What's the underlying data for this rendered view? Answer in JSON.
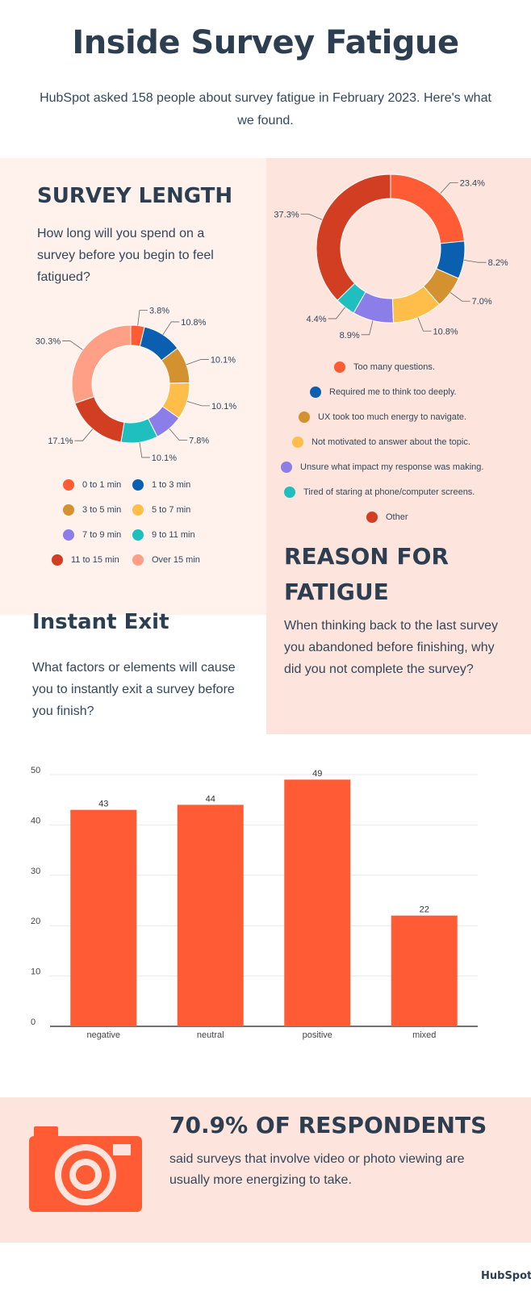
{
  "header": {
    "title": "Inside Survey Fatigue",
    "subtitle": "HubSpot asked 158 people about survey fatigue in February 2023. Here's what we found."
  },
  "survey_length": {
    "heading": "SURVEY LENGTH",
    "question": "How long will you spend on a survey before you begin to feel fatigued?",
    "legend": [
      {
        "label": "0 to 1 min",
        "color": "#ff5c35"
      },
      {
        "label": "1 to 3 min",
        "color": "#0b5fb0"
      },
      {
        "label": "3 to 5 min",
        "color": "#d4912f"
      },
      {
        "label": "5 to 7 min",
        "color": "#ffbd4a"
      },
      {
        "label": "7 to 9 min",
        "color": "#8c7ee8"
      },
      {
        "label": "9 to 11 min",
        "color": "#1fbfbf"
      },
      {
        "label": "11 to 15 min",
        "color": "#d13e22"
      },
      {
        "label": "Over 15 min",
        "color": "#ff9f86"
      }
    ]
  },
  "reason_for_fatigue": {
    "heading_line1": "REASON FOR",
    "heading_line2": "FATIGUE",
    "question": "When thinking back to the last survey you abandoned before finishing, why did you not complete the survey?",
    "legend": [
      {
        "label": "Too many questions.",
        "color": "#ff5c35"
      },
      {
        "label": "Required me to think too deeply.",
        "color": "#0b5fb0"
      },
      {
        "label": "UX took too much energy to navigate.",
        "color": "#d4912f"
      },
      {
        "label": "Not motivated to answer about the topic.",
        "color": "#ffbd4a"
      },
      {
        "label": "Unsure what impact my response was making.",
        "color": "#8c7ee8"
      },
      {
        "label": "Tired of staring at phone/computer screens.",
        "color": "#1fbfbf"
      },
      {
        "label": "Other",
        "color": "#d13e22"
      }
    ]
  },
  "instant_exit": {
    "heading": "Instant Exit",
    "question": "What factors or elements will cause you to instantly exit a survey before you finish?"
  },
  "chart_data": [
    {
      "type": "pie",
      "title": "SURVEY LENGTH",
      "categories": [
        "0 to 1 min",
        "1 to 3 min",
        "3 to 5 min",
        "5 to 7 min",
        "7 to 9 min",
        "9 to 11 min",
        "11 to 15 min",
        "Over 15 min"
      ],
      "values": [
        3.8,
        10.8,
        10.1,
        10.1,
        7.8,
        10.1,
        17.1,
        30.3
      ],
      "labels": [
        "3.8%",
        "10.8%",
        "10.1%",
        "10.1%",
        "7.8%",
        "10.1%",
        "17.1%",
        "30.3%"
      ],
      "colors": [
        "#ff5c35",
        "#0b5fb0",
        "#d4912f",
        "#ffbd4a",
        "#8c7ee8",
        "#1fbfbf",
        "#d13e22",
        "#ff9f86"
      ],
      "donut": true,
      "legend": "bottom"
    },
    {
      "type": "pie",
      "title": "REASON FOR FATIGUE",
      "categories": [
        "Too many questions.",
        "Required me to think too deeply.",
        "UX took too much energy to navigate.",
        "Not motivated to answer about the topic.",
        "Unsure what impact my response was making.",
        "Tired of staring at phone/computer screens.",
        "Other"
      ],
      "values": [
        23.4,
        8.2,
        7.0,
        10.8,
        8.9,
        4.4,
        37.3
      ],
      "labels": [
        "23.4%",
        "8.2%",
        "7.0%",
        "10.8%",
        "8.9%",
        "4.4%",
        "37.3%"
      ],
      "colors": [
        "#ff5c35",
        "#0b5fb0",
        "#d4912f",
        "#ffbd4a",
        "#8c7ee8",
        "#1fbfbf",
        "#d13e22"
      ],
      "donut": true,
      "legend": "bottom"
    },
    {
      "type": "bar",
      "title": "Instant Exit",
      "categories": [
        "negative",
        "neutral",
        "positive",
        "mixed"
      ],
      "values": [
        43,
        44,
        49,
        22
      ],
      "ylim": [
        0,
        50
      ],
      "yticks": [
        0,
        10,
        20,
        30,
        40,
        50
      ],
      "color": "#ff5c35",
      "grid": true,
      "xlabel": "",
      "ylabel": ""
    }
  ],
  "stat": {
    "headline": "70.9% OF RESPONDENTS",
    "text": "said surveys that involve video or photo viewing are usually more energizing to take.",
    "icon": "camera-icon",
    "icon_color": "#ff5c35"
  },
  "brand": {
    "logo_text": "HubSpot"
  }
}
